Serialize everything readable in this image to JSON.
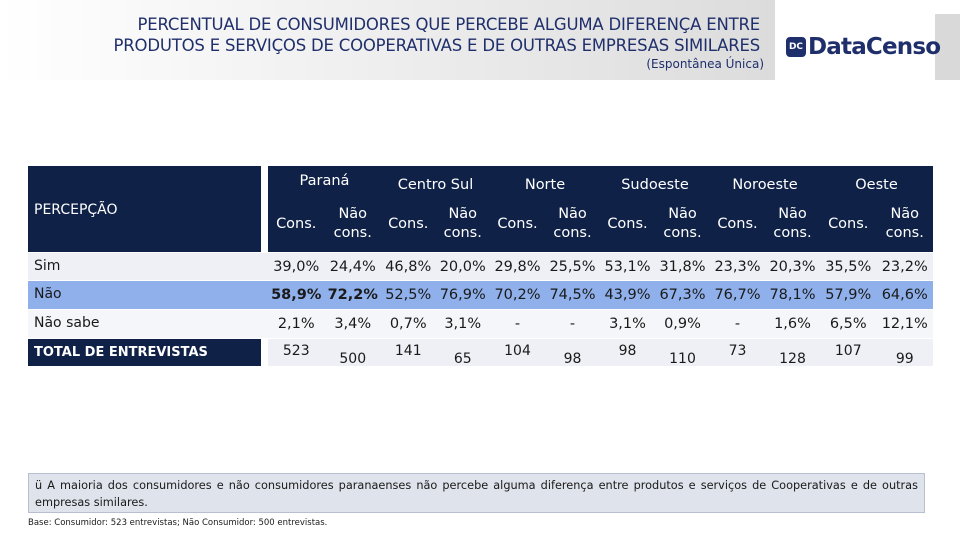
{
  "header": {
    "title_line1": "PERCENTUAL DE CONSUMIDORES QUE PERCEBE ALGUMA DIFERENÇA ENTRE",
    "title_line2": "PRODUTOS E SERVIÇOS DE COOPERATIVAS E DE OUTRAS EMPRESAS SIMILARES",
    "subtitle": "(Espontânea Única)",
    "logo_text": "DataCenso",
    "logo_mark": "DC"
  },
  "table": {
    "row_header": "PERCEPÇÃO",
    "regions": [
      "Paraná",
      "Centro Sul",
      "Norte",
      "Sudoeste",
      "Noroeste",
      "Oeste"
    ],
    "sub_cons": "Cons.",
    "sub_naocons": "Não cons.",
    "rows": [
      {
        "label": "Sim",
        "values": [
          "39,0%",
          "24,4%",
          "46,8%",
          "20,0%",
          "29,8%",
          "25,5%",
          "53,1%",
          "31,8%",
          "23,3%",
          "20,3%",
          "35,5%",
          "23,2%"
        ]
      },
      {
        "label": "Não",
        "values": [
          "58,9%",
          "72,2%",
          "52,5%",
          "76,9%",
          "70,2%",
          "74,5%",
          "43,9%",
          "67,3%",
          "76,7%",
          "78,1%",
          "57,9%",
          "64,6%"
        ]
      },
      {
        "label": "Não sabe",
        "values": [
          "2,1%",
          "3,4%",
          "0,7%",
          "3,1%",
          "-",
          "-",
          "3,1%",
          "0,9%",
          "-",
          "1,6%",
          "6,5%",
          "12,1%"
        ]
      },
      {
        "label": "TOTAL DE ENTREVISTAS",
        "values": [
          "523",
          "500",
          "141",
          "65",
          "104",
          "98",
          "98",
          "110",
          "73",
          "128",
          "107",
          "99"
        ]
      }
    ]
  },
  "note": "A maioria dos consumidores e não consumidores paranaenses não percebe alguma diferença entre produtos e serviços de Cooperativas e de outras empresas similares.",
  "note_bullet": "ü",
  "footer": "Base: Consumidor: 523 entrevistas; Não Consumidor: 500 entrevistas."
}
